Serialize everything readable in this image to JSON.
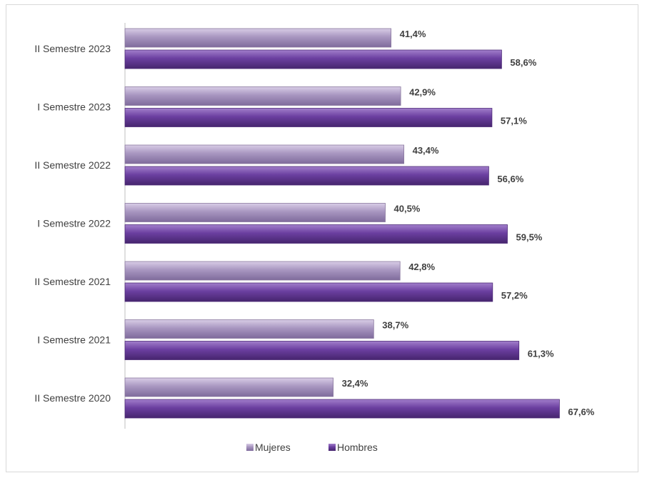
{
  "chart_data": {
    "type": "bar",
    "orientation": "horizontal",
    "categories": [
      "II Semestre 2023",
      "I Semestre 2023",
      "II Semestre 2022",
      "I Semestre 2022",
      "II Semestre 2021",
      "I Semestre 2021",
      "II Semestre 2020"
    ],
    "series": [
      {
        "name": "Mujeres",
        "color": "#a896c0",
        "values": [
          41.4,
          42.9,
          43.4,
          40.5,
          42.8,
          38.7,
          32.4
        ],
        "labels": [
          "41,4%",
          "42,9%",
          "43,4%",
          "40,5%",
          "42,8%",
          "38,7%",
          "32,4%"
        ]
      },
      {
        "name": "Hombres",
        "color": "#6b3fa0",
        "values": [
          58.6,
          57.1,
          56.6,
          59.5,
          57.2,
          61.3,
          67.6
        ],
        "labels": [
          "58,6%",
          "57,1%",
          "56,6%",
          "59,5%",
          "57,2%",
          "61,3%",
          "67,6%"
        ]
      }
    ],
    "xlim": [
      0,
      100
    ],
    "grid": false,
    "legend": "bottom-center"
  }
}
